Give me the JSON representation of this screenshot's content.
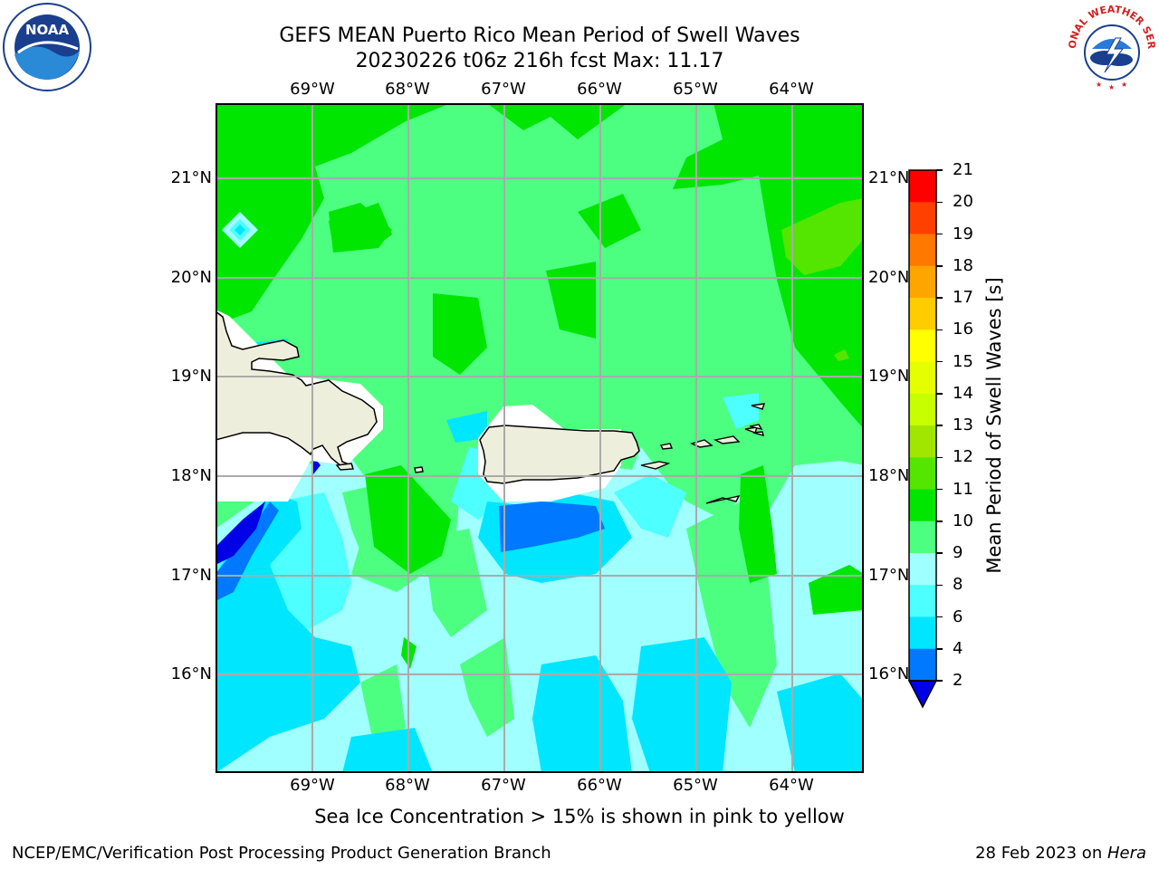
{
  "title": {
    "line1": "GEFS MEAN Puerto Rico Mean Period of Swell Waves",
    "line2": "20230226 t06z 216h fcst   Max: 11.17"
  },
  "logos": {
    "left": "noaa-logo",
    "left_text": "NOAA",
    "right": "nws-logo",
    "right_text": "NATIONAL WEATHER SERVICE"
  },
  "map": {
    "lon_labels": [
      "69°W",
      "68°W",
      "67°W",
      "66°W",
      "65°W",
      "64°W"
    ],
    "lat_labels": [
      "21°N",
      "20°N",
      "19°N",
      "18°N",
      "17°N",
      "16°N"
    ],
    "grid": true,
    "land_color": "#eeeedc",
    "coast_color": "#000000"
  },
  "colorbar": {
    "label": "Mean Period of Swell Waves [s]",
    "ticks": [
      "2",
      "4",
      "6",
      "8",
      "9",
      "10",
      "11",
      "12",
      "13",
      "14",
      "15",
      "16",
      "17",
      "18",
      "19",
      "20",
      "21"
    ],
    "colors": [
      "#0000e6",
      "#0078ff",
      "#00e6ff",
      "#4dffff",
      "#a0ffff",
      "#4dff80",
      "#00e600",
      "#55e600",
      "#a0e600",
      "#c8ff00",
      "#e6ff00",
      "#ffff00",
      "#ffcc00",
      "#ffa500",
      "#ff7800",
      "#ff4000",
      "#ff0000"
    ]
  },
  "footnote": "Sea Ice Concentration > 15% is shown in pink to yellow",
  "footer": {
    "left": "NCEP/EMC/Verification Post Processing Product Generation Branch",
    "right_prefix": "28 Feb 2023 on ",
    "right_host": "Hera"
  }
}
